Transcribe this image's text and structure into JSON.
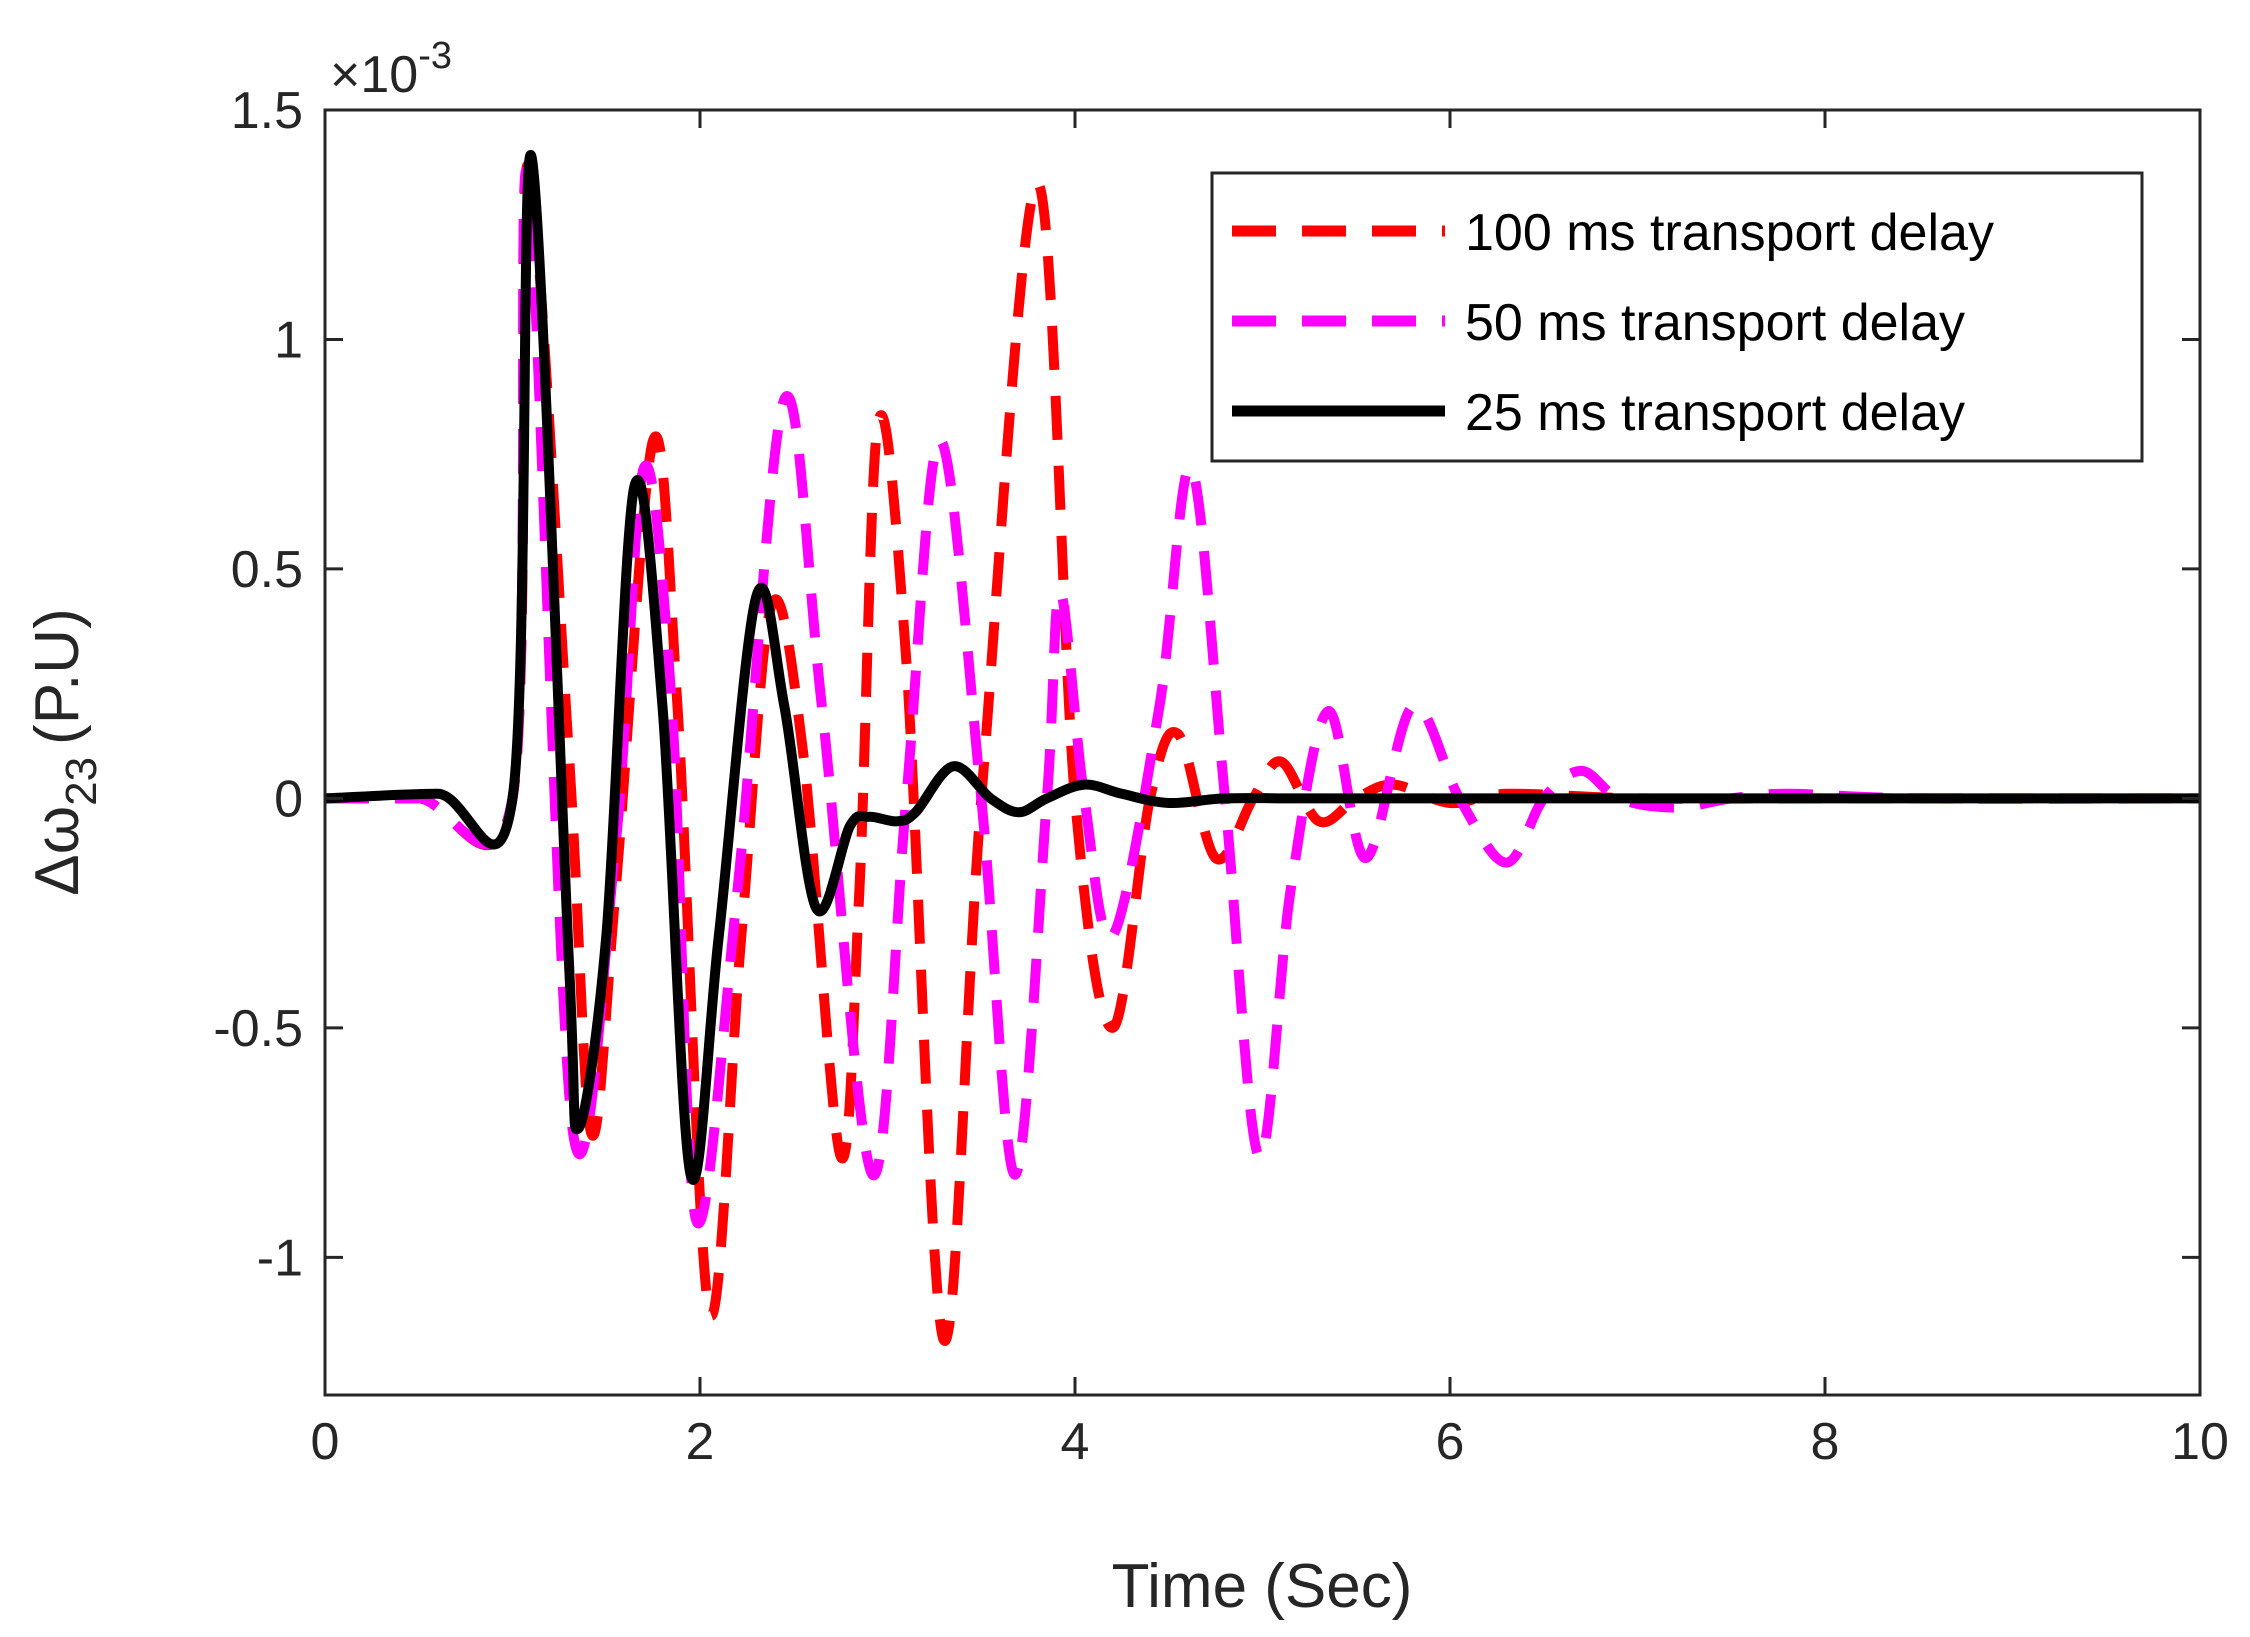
{
  "chart_data": {
    "type": "line",
    "title": "",
    "xlabel": "Time (Sec)",
    "ylabel_main": "Δω",
    "ylabel_sub": "23",
    "ylabel_unit": "(P.U)",
    "y_exponent_label": "×10",
    "y_exponent_power": "-3",
    "xlim": [
      0,
      10
    ],
    "ylim": [
      -1.3,
      1.5
    ],
    "x_ticks": [
      0,
      2,
      4,
      6,
      8,
      10
    ],
    "x_tick_labels": [
      "0",
      "2",
      "4",
      "6",
      "8",
      "10"
    ],
    "y_ticks": [
      1.5,
      1,
      0.5,
      0,
      -0.5,
      -1
    ],
    "y_tick_labels": [
      "1.5",
      "1",
      "0.5",
      "0",
      "-0.5",
      "-1"
    ],
    "grid": false,
    "legend_position": "top-right",
    "series": [
      {
        "name": "100 ms transport delay",
        "color": "#ff0000",
        "style": "dashed",
        "points": [
          [
            0,
            0
          ],
          [
            0.5,
            0
          ],
          [
            1.0,
            0
          ],
          [
            1.08,
            1.38
          ],
          [
            1.3,
            0.1
          ],
          [
            1.42,
            -0.73
          ],
          [
            1.55,
            -0.2
          ],
          [
            1.75,
            0.78
          ],
          [
            1.88,
            0.2
          ],
          [
            2.05,
            -1.12
          ],
          [
            2.22,
            -0.3
          ],
          [
            2.38,
            0.42
          ],
          [
            2.55,
            0.1
          ],
          [
            2.75,
            -0.78
          ],
          [
            2.85,
            -0.2
          ],
          [
            2.95,
            0.82
          ],
          [
            3.1,
            0.3
          ],
          [
            3.3,
            -1.18
          ],
          [
            3.5,
            0.0
          ],
          [
            3.8,
            1.34
          ],
          [
            4.0,
            0.0
          ],
          [
            4.2,
            -0.5
          ],
          [
            4.4,
            0.0
          ],
          [
            4.55,
            0.14
          ],
          [
            4.75,
            -0.13
          ],
          [
            4.95,
            0.0
          ],
          [
            5.1,
            0.08
          ],
          [
            5.3,
            -0.05
          ],
          [
            5.5,
            0.0
          ],
          [
            5.7,
            0.03
          ],
          [
            6.0,
            -0.01
          ],
          [
            6.3,
            0.01
          ],
          [
            7.0,
            0.0
          ],
          [
            8.0,
            0.0
          ],
          [
            10.0,
            0.0
          ]
        ]
      },
      {
        "name": "50 ms transport delay",
        "color": "#ff00ff",
        "style": "dashed",
        "points": [
          [
            0,
            0
          ],
          [
            0.5,
            0
          ],
          [
            1.0,
            0
          ],
          [
            1.08,
            1.36
          ],
          [
            1.32,
            -0.72
          ],
          [
            1.55,
            -0.1
          ],
          [
            1.7,
            0.72
          ],
          [
            1.85,
            0.2
          ],
          [
            1.98,
            -0.92
          ],
          [
            2.2,
            -0.2
          ],
          [
            2.45,
            0.87
          ],
          [
            2.65,
            0.2
          ],
          [
            2.92,
            -0.82
          ],
          [
            3.1,
            0.0
          ],
          [
            3.28,
            0.78
          ],
          [
            3.5,
            0.0
          ],
          [
            3.68,
            -0.82
          ],
          [
            3.85,
            0.0
          ],
          [
            3.92,
            0.45
          ],
          [
            4.05,
            0.0
          ],
          [
            4.2,
            -0.3
          ],
          [
            4.45,
            0.2
          ],
          [
            4.62,
            0.72
          ],
          [
            4.8,
            0.0
          ],
          [
            4.98,
            -0.78
          ],
          [
            5.15,
            -0.2
          ],
          [
            5.35,
            0.19
          ],
          [
            5.55,
            -0.13
          ],
          [
            5.8,
            0.2
          ],
          [
            6.05,
            0.0
          ],
          [
            6.3,
            -0.14
          ],
          [
            6.5,
            0.0
          ],
          [
            6.7,
            0.06
          ],
          [
            6.9,
            0.0
          ],
          [
            7.2,
            -0.02
          ],
          [
            7.5,
            0.0
          ],
          [
            7.8,
            0.01
          ],
          [
            8.5,
            0.0
          ],
          [
            10.0,
            0.0
          ]
        ]
      },
      {
        "name": "25 ms transport delay",
        "color": "#000000",
        "style": "solid",
        "points": [
          [
            0,
            0
          ],
          [
            0.6,
            0.01
          ],
          [
            1.0,
            0
          ],
          [
            1.1,
            1.4
          ],
          [
            1.3,
            -0.35
          ],
          [
            1.35,
            -0.72
          ],
          [
            1.5,
            -0.3
          ],
          [
            1.65,
            0.68
          ],
          [
            1.8,
            0.2
          ],
          [
            1.95,
            -0.82
          ],
          [
            2.1,
            -0.3
          ],
          [
            2.3,
            0.44
          ],
          [
            2.45,
            0.2
          ],
          [
            2.62,
            -0.24
          ],
          [
            2.8,
            -0.06
          ],
          [
            2.9,
            -0.04
          ],
          [
            3.05,
            -0.05
          ],
          [
            3.15,
            -0.03
          ],
          [
            3.35,
            0.07
          ],
          [
            3.55,
            0.0
          ],
          [
            3.7,
            -0.03
          ],
          [
            3.85,
            0.0
          ],
          [
            4.05,
            0.03
          ],
          [
            4.25,
            0.01
          ],
          [
            4.5,
            -0.01
          ],
          [
            4.8,
            0.0
          ],
          [
            5.2,
            0.0
          ],
          [
            6.0,
            0.0
          ],
          [
            10.0,
            0.0
          ]
        ]
      }
    ]
  }
}
